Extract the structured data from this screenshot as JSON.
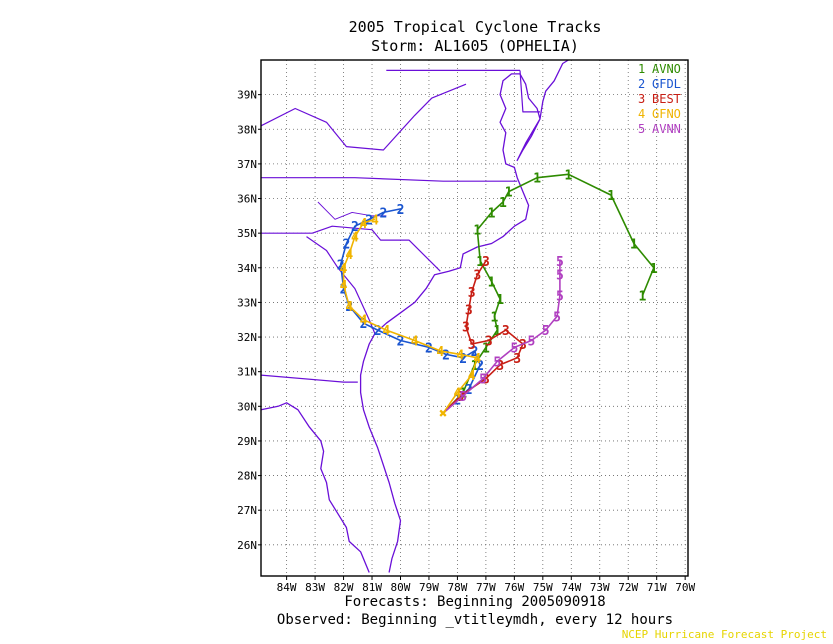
{
  "header": {
    "title": "2005 Tropical Cyclone Tracks",
    "subtitle": "Storm: AL1605 (OPHELIA)"
  },
  "footer": {
    "forecasts": "Forecasts: Beginning 2005090918",
    "observed": "Observed: Beginning _vtitleymdh, every 12 hours",
    "credit": "NCEP Hurricane Forecast Project"
  },
  "colors": {
    "coast": "#6a0fd8",
    "grid": "#666666",
    "AVNO": "#2e8b00",
    "GFDL": "#1a55d0",
    "BEST": "#c81e14",
    "GFNO": "#f0b400",
    "AVNN": "#b040c0"
  },
  "chart_data": {
    "type": "map",
    "lon_ticks": [
      "84W",
      "83W",
      "82W",
      "81W",
      "80W",
      "79W",
      "78W",
      "77W",
      "76W",
      "75W",
      "74W",
      "73W",
      "72W",
      "71W",
      "70W"
    ],
    "lat_ticks": [
      "26N",
      "27N",
      "28N",
      "29N",
      "30N",
      "31N",
      "32N",
      "33N",
      "34N",
      "35N",
      "36N",
      "37N",
      "38N",
      "39N"
    ],
    "lon_range": [
      -84.9,
      -69.9
    ],
    "lat_range": [
      25.1,
      40.0
    ],
    "grid": true,
    "legend": {
      "placement": "top-right",
      "entries": [
        {
          "num": "1",
          "name": "AVNO",
          "color": "#2e8b00"
        },
        {
          "num": "2",
          "name": "GFDL",
          "color": "#1a55d0"
        },
        {
          "num": "3",
          "name": "BEST",
          "color": "#c81e14"
        },
        {
          "num": "4",
          "name": "GFNO",
          "color": "#f0b400"
        },
        {
          "num": "5",
          "name": "AVNN",
          "color": "#b040c0"
        }
      ]
    },
    "tracks": [
      {
        "name": "AVNO",
        "num": "1",
        "color": "#2e8b00",
        "points": [
          [
            -78.5,
            29.8
          ],
          [
            -77.8,
            30.4
          ],
          [
            -77.4,
            31.2
          ],
          [
            -77.0,
            31.7
          ],
          [
            -76.6,
            32.2
          ],
          [
            -76.7,
            32.6
          ],
          [
            -76.5,
            33.1
          ],
          [
            -76.8,
            33.6
          ],
          [
            -77.2,
            34.2
          ],
          [
            -77.3,
            35.1
          ],
          [
            -76.8,
            35.6
          ],
          [
            -76.4,
            35.9
          ],
          [
            -76.2,
            36.2
          ],
          [
            -75.2,
            36.6
          ],
          [
            -74.1,
            36.7
          ],
          [
            -72.6,
            36.1
          ],
          [
            -71.8,
            34.7
          ],
          [
            -71.1,
            34.0
          ],
          [
            -71.5,
            33.2
          ]
        ]
      },
      {
        "name": "GFDL",
        "num": "2",
        "color": "#1a55d0",
        "points": [
          [
            -78.5,
            29.8
          ],
          [
            -78.0,
            30.2
          ],
          [
            -77.6,
            30.5
          ],
          [
            -77.2,
            31.2
          ],
          [
            -77.4,
            31.6
          ],
          [
            -77.8,
            31.4
          ],
          [
            -78.4,
            31.5
          ],
          [
            -79.0,
            31.7
          ],
          [
            -80.0,
            31.9
          ],
          [
            -80.8,
            32.2
          ],
          [
            -81.3,
            32.4
          ],
          [
            -81.8,
            32.9
          ],
          [
            -82.0,
            33.4
          ],
          [
            -82.1,
            34.1
          ],
          [
            -81.9,
            34.7
          ],
          [
            -81.6,
            35.2
          ],
          [
            -81.1,
            35.4
          ],
          [
            -80.6,
            35.6
          ],
          [
            -80.0,
            35.7
          ]
        ]
      },
      {
        "name": "BEST",
        "num": "3",
        "color": "#c81e14",
        "points": [
          [
            -78.5,
            29.8
          ],
          [
            -77.9,
            30.3
          ],
          [
            -77.0,
            30.8
          ],
          [
            -76.5,
            31.2
          ],
          [
            -75.9,
            31.4
          ],
          [
            -75.7,
            31.8
          ],
          [
            -76.3,
            32.2
          ],
          [
            -76.9,
            31.9
          ],
          [
            -77.5,
            31.8
          ],
          [
            -77.7,
            32.3
          ],
          [
            -77.6,
            32.8
          ],
          [
            -77.5,
            33.3
          ],
          [
            -77.3,
            33.8
          ],
          [
            -77.0,
            34.2
          ]
        ]
      },
      {
        "name": "GFNO",
        "num": "4",
        "color": "#f0b400",
        "points": [
          [
            -78.5,
            29.8
          ],
          [
            -78.0,
            30.4
          ],
          [
            -77.5,
            30.9
          ],
          [
            -77.3,
            31.4
          ],
          [
            -77.9,
            31.5
          ],
          [
            -78.6,
            31.6
          ],
          [
            -79.5,
            31.9
          ],
          [
            -80.5,
            32.2
          ],
          [
            -81.3,
            32.5
          ],
          [
            -81.8,
            32.9
          ],
          [
            -82.0,
            33.5
          ],
          [
            -82.0,
            34.0
          ],
          [
            -81.8,
            34.4
          ],
          [
            -81.6,
            34.9
          ],
          [
            -81.3,
            35.3
          ],
          [
            -80.9,
            35.4
          ]
        ]
      },
      {
        "name": "AVNN",
        "num": "5",
        "color": "#b040c0",
        "points": [
          [
            -78.5,
            29.8
          ],
          [
            -77.8,
            30.3
          ],
          [
            -77.1,
            30.8
          ],
          [
            -76.6,
            31.3
          ],
          [
            -76.0,
            31.7
          ],
          [
            -75.4,
            31.9
          ],
          [
            -74.9,
            32.2
          ],
          [
            -74.5,
            32.6
          ],
          [
            -74.4,
            33.2
          ],
          [
            -74.4,
            33.8
          ],
          [
            -74.4,
            34.2
          ]
        ]
      }
    ]
  }
}
